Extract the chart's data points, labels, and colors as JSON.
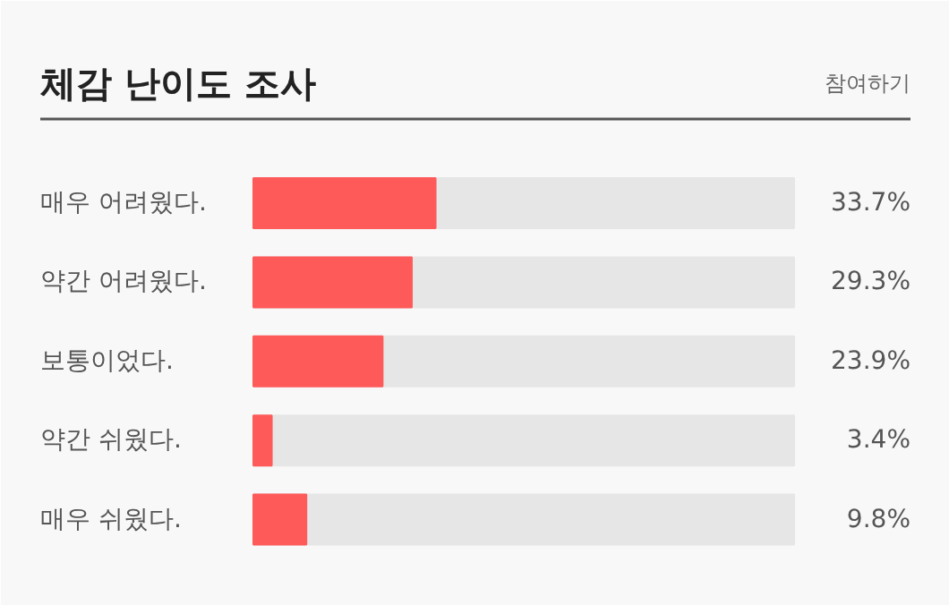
{
  "chart_data": {
    "type": "bar",
    "orientation": "horizontal",
    "title": "체감 난이도 조사",
    "annotations": [
      "참여하기"
    ],
    "categories": [
      "매우 어려웠다.",
      "약간 어려웠다.",
      "보통이었다.",
      "약간 쉬웠다.",
      "매우 쉬웠다."
    ],
    "values": [
      33.7,
      29.3,
      23.9,
      3.4,
      9.8
    ],
    "color": "#ff5a5a",
    "value_labels": [
      "33.7%",
      "29.3%",
      "23.9%",
      "3.4%",
      "9.8%"
    ],
    "xlim": [
      0,
      100
    ],
    "tick_labels": false,
    "grid": false
  }
}
